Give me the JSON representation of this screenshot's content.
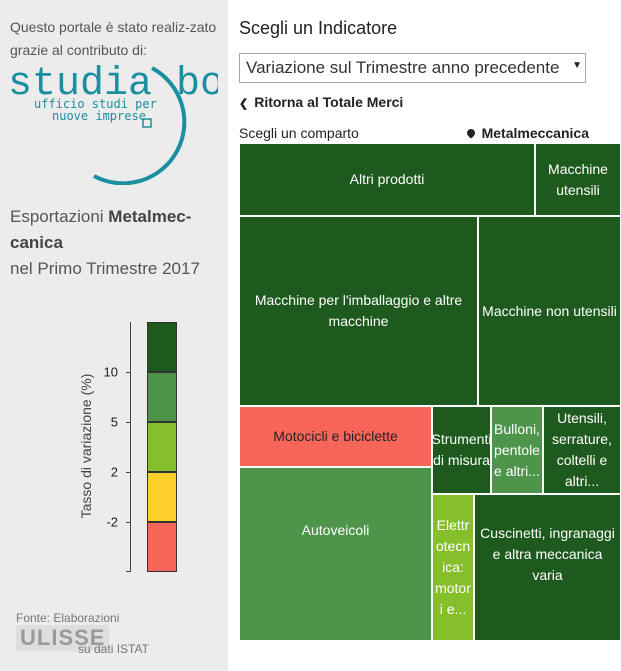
{
  "sidebar": {
    "intro_text": "Questo portale è stato realiz-zato grazie al contributo di:",
    "logo": {
      "name": "studia bo",
      "tagline_line1": "ufficio studi per",
      "tagline_line2": "nuove imprese"
    },
    "heading_prefix": "Esportazioni ",
    "heading_sector": "Metalmec-canica",
    "heading_period": "nel Primo Trimestre 2017",
    "legend": {
      "axis_label": "Tasso di variazione (%)",
      "ticks": [
        "10",
        "5",
        "2",
        "-2"
      ],
      "colors": [
        "#1e5a1e",
        "#4e944a",
        "#85bf2c",
        "#fdd02b",
        "#f8665a"
      ]
    },
    "source_prefix": "Fonte: Elaborazioni",
    "source_brand": "ULISSE",
    "source_suffix": "su dati ISTAT"
  },
  "main": {
    "title": "Scegli un Indicatore",
    "indicator_selected": "Variazione sul Trimestre anno precedente",
    "back_link": "Ritorna al Totale Merci",
    "comparto_label": "Scegli un comparto",
    "comparto_selected": "Metalmeccanica"
  },
  "treemap": {
    "cells": [
      {
        "label": "Altri prodotti",
        "color": "#1e5a1e"
      },
      {
        "label": "Macchine utensili",
        "color": "#1e5a1e"
      },
      {
        "label": "Macchine per l'imballaggio e altre macchine",
        "color": "#1e5a1e"
      },
      {
        "label": "Macchine non utensili",
        "color": "#1e5a1e"
      },
      {
        "label": "Motocicli e biciclette",
        "color": "#f8665a"
      },
      {
        "label": "Strumenti di misura",
        "color": "#1e5a1e"
      },
      {
        "label": "Bulloni, pentole e altri...",
        "color": "#4e944a"
      },
      {
        "label": "Utensili, serrature, coltelli e altri...",
        "color": "#1e5a1e"
      },
      {
        "label": "Autoveicoli",
        "color": "#4e944a"
      },
      {
        "label": "Elettrotecnica: motori e...",
        "color": "#85bf2c"
      },
      {
        "label": "Cuscinetti, ingranaggi e altra meccanica varia",
        "color": "#1e5a1e"
      }
    ]
  }
}
